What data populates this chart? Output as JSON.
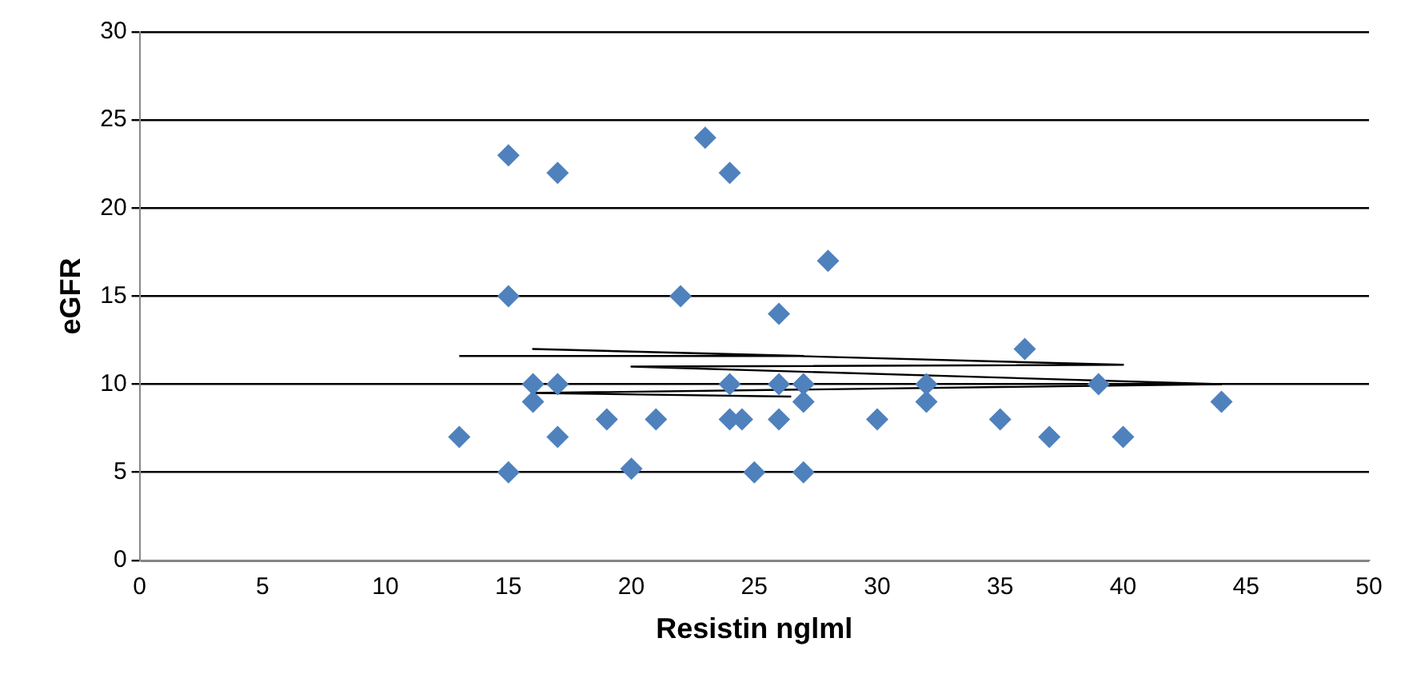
{
  "chart_data": {
    "type": "scatter",
    "xlabel": "Resistin nglml",
    "ylabel": "eGFR",
    "xlim": [
      0,
      50
    ],
    "xticks": [
      0,
      5,
      10,
      15,
      20,
      25,
      30,
      35,
      40,
      45,
      50
    ],
    "ylim": [
      0,
      30
    ],
    "yticks": [
      0,
      5,
      10,
      15,
      20,
      25,
      30
    ],
    "grid": "y",
    "legend": false,
    "marker": "diamond",
    "series": [
      {
        "color": "#4f81bd",
        "x": [
          15,
          17,
          23,
          24,
          15,
          22,
          26,
          28,
          36,
          13,
          15,
          16,
          16,
          17,
          17,
          19,
          20,
          21,
          24,
          24,
          24.5,
          25,
          26,
          26,
          27,
          27,
          27,
          30,
          32,
          32,
          35,
          37,
          39,
          40,
          44
        ],
        "values": [
          23,
          22,
          24,
          22,
          15,
          15,
          14,
          17,
          12,
          7,
          5,
          10,
          9,
          10,
          7,
          8,
          5.2,
          8,
          10,
          8,
          8,
          5,
          10,
          8,
          10,
          9,
          5,
          8,
          10,
          9,
          8,
          7,
          10,
          7,
          9
        ]
      },
      {
        "type": "line",
        "color": "#000000",
        "marker": "none",
        "x": [
          13,
          27,
          16,
          40,
          20,
          44,
          16,
          26.5
        ],
        "values": [
          11.6,
          11.6,
          12,
          11.1,
          11,
          10,
          9.5,
          9.3
        ]
      }
    ]
  }
}
